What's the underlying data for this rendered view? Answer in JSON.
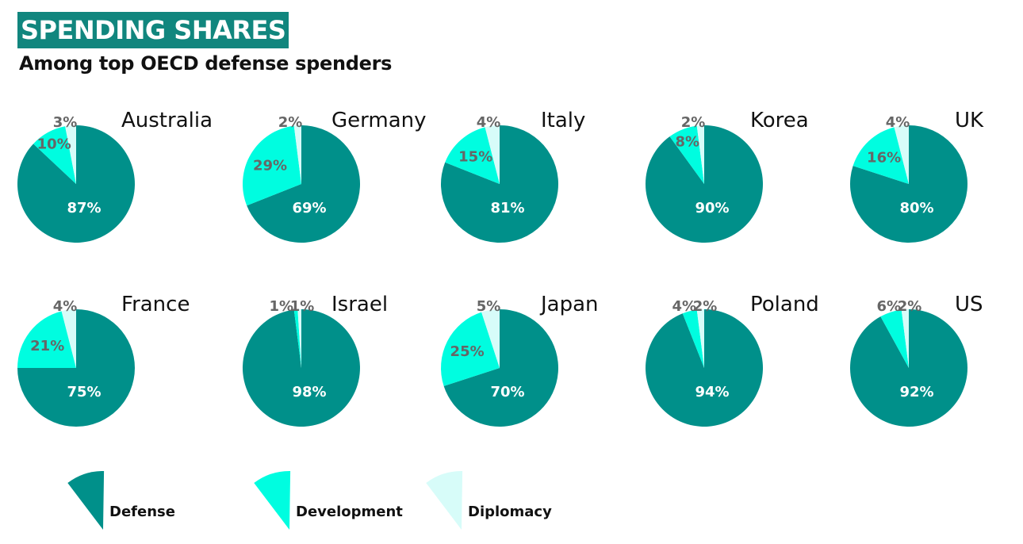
{
  "title": "SPENDING SHARES",
  "subtitle": "Among top OECD defense spenders",
  "colors": {
    "title_bg": "#11867e",
    "defense": "#00908a",
    "development": "#00fde0",
    "diplomacy": "#d7fcf9"
  },
  "chart_data": {
    "type": "pie",
    "categories": [
      "Defense",
      "Development",
      "Diplomacy"
    ],
    "charts": [
      {
        "country": "Australia",
        "values": [
          87,
          10,
          3
        ]
      },
      {
        "country": "Germany",
        "values": [
          69,
          29,
          2
        ]
      },
      {
        "country": "Italy",
        "values": [
          81,
          15,
          4
        ]
      },
      {
        "country": "Korea",
        "values": [
          90,
          8,
          2
        ]
      },
      {
        "country": "UK",
        "values": [
          80,
          16,
          4
        ]
      },
      {
        "country": "France",
        "values": [
          75,
          21,
          4
        ]
      },
      {
        "country": "Israel",
        "values": [
          98,
          1,
          1
        ]
      },
      {
        "country": "Japan",
        "values": [
          70,
          25,
          5
        ]
      },
      {
        "country": "Poland",
        "values": [
          94,
          4,
          2
        ]
      },
      {
        "country": "US",
        "values": [
          92,
          6,
          2
        ]
      }
    ],
    "legend": [
      {
        "name": "Defense",
        "color": "#00908a"
      },
      {
        "name": "Development",
        "color": "#00fde0"
      },
      {
        "name": "Diplomacy",
        "color": "#d7fcf9"
      }
    ],
    "legend_position": "bottom-left"
  }
}
